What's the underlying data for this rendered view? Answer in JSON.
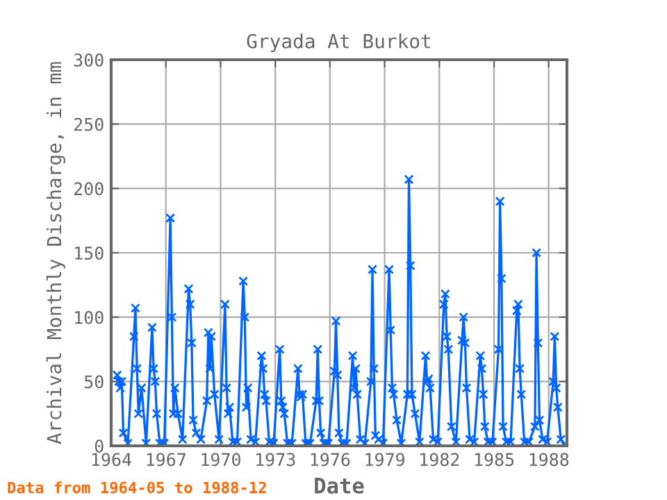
{
  "chart_data": {
    "type": "line",
    "title": "Gryada At Burkot",
    "xlabel": "Date",
    "ylabel": "Archival Monthly Discharge, in mm",
    "annotations": [
      "Data from 1964-05 to 1988-12"
    ],
    "x": [
      "1964-05",
      "1964-06",
      "1964-07",
      "1964-08",
      "1964-09",
      "1964-12",
      "1965-04",
      "1965-05",
      "1965-06",
      "1965-07",
      "1965-09",
      "1965-12",
      "1966-04",
      "1966-05",
      "1966-06",
      "1966-07",
      "1966-09",
      "1966-12",
      "1967-04",
      "1967-05",
      "1967-06",
      "1967-07",
      "1967-09",
      "1967-12",
      "1968-04",
      "1968-05",
      "1968-06",
      "1968-07",
      "1968-09",
      "1968-12",
      "1969-04",
      "1969-05",
      "1969-06",
      "1969-07",
      "1969-09",
      "1969-12",
      "1970-04",
      "1970-05",
      "1970-06",
      "1970-07",
      "1970-09",
      "1970-12",
      "1971-04",
      "1971-05",
      "1971-06",
      "1971-07",
      "1971-09",
      "1971-12",
      "1972-04",
      "1972-05",
      "1972-06",
      "1972-07",
      "1972-09",
      "1972-12",
      "1973-04",
      "1973-05",
      "1973-06",
      "1973-07",
      "1973-09",
      "1973-12",
      "1974-04",
      "1974-05",
      "1974-06",
      "1974-07",
      "1974-09",
      "1974-12",
      "1975-04",
      "1975-05",
      "1975-06",
      "1975-07",
      "1975-09",
      "1975-12",
      "1976-04",
      "1976-05",
      "1976-06",
      "1976-07",
      "1976-09",
      "1976-12",
      "1977-04",
      "1977-05",
      "1977-06",
      "1977-07",
      "1977-09",
      "1977-12",
      "1978-04",
      "1978-05",
      "1978-06",
      "1978-07",
      "1978-09",
      "1978-12",
      "1979-04",
      "1979-05",
      "1979-06",
      "1979-07",
      "1979-09",
      "1979-12",
      "1980-04",
      "1980-05",
      "1980-06",
      "1980-07",
      "1980-09",
      "1980-12",
      "1981-04",
      "1981-05",
      "1981-06",
      "1981-07",
      "1981-09",
      "1981-12",
      "1982-04",
      "1982-05",
      "1982-06",
      "1982-07",
      "1982-09",
      "1982-12",
      "1983-04",
      "1983-05",
      "1983-06",
      "1983-07",
      "1983-09",
      "1983-12",
      "1984-04",
      "1984-05",
      "1984-06",
      "1984-07",
      "1984-09",
      "1984-12",
      "1985-04",
      "1985-05",
      "1985-06",
      "1985-07",
      "1985-09",
      "1985-12",
      "1986-04",
      "1986-05",
      "1986-06",
      "1986-07",
      "1986-09",
      "1986-12",
      "1987-04",
      "1987-05",
      "1987-06",
      "1987-07",
      "1987-09",
      "1987-12",
      "1988-04",
      "1988-05",
      "1988-06",
      "1988-07",
      "1988-09",
      "1988-12"
    ],
    "values": [
      55,
      50,
      45,
      50,
      10,
      2,
      85,
      107,
      60,
      25,
      45,
      2,
      92,
      60,
      50,
      25,
      2,
      2,
      177,
      100,
      25,
      45,
      25,
      5,
      122,
      110,
      80,
      20,
      10,
      5,
      35,
      88,
      60,
      85,
      40,
      5,
      110,
      45,
      25,
      30,
      3,
      3,
      128,
      100,
      30,
      45,
      5,
      3,
      70,
      60,
      40,
      35,
      3,
      2,
      75,
      35,
      30,
      25,
      2,
      2,
      60,
      40,
      38,
      40,
      2,
      2,
      35,
      75,
      35,
      10,
      2,
      2,
      58,
      97,
      55,
      10,
      2,
      2,
      70,
      45,
      60,
      40,
      5,
      2,
      50,
      137,
      60,
      8,
      5,
      2,
      137,
      90,
      45,
      40,
      20,
      2,
      40,
      207,
      140,
      40,
      25,
      3,
      70,
      50,
      52,
      45,
      5,
      3,
      110,
      118,
      85,
      75,
      15,
      3,
      82,
      100,
      80,
      45,
      5,
      3,
      70,
      60,
      40,
      15,
      3,
      3,
      75,
      190,
      130,
      15,
      3,
      3,
      105,
      110,
      60,
      40,
      3,
      3,
      15,
      150,
      80,
      20,
      5,
      3,
      50,
      85,
      45,
      30,
      5,
      0
    ],
    "color": "#0066ff",
    "marker": "cross",
    "line_style": "solid",
    "xlim": [
      "1964-01",
      "1989-01"
    ],
    "xticks": [
      {
        "value": "1964-01",
        "label": "1964"
      },
      {
        "value": "1967-01",
        "label": "1967"
      },
      {
        "value": "1970-01",
        "label": "1970"
      },
      {
        "value": "1973-01",
        "label": "1973"
      },
      {
        "value": "1976-01",
        "label": "1976"
      },
      {
        "value": "1979-01",
        "label": "1979"
      },
      {
        "value": "1982-01",
        "label": "1982"
      },
      {
        "value": "1985-01",
        "label": "1985"
      },
      {
        "value": "1988-01",
        "label": "1988"
      }
    ],
    "ylim": [
      0,
      300
    ],
    "yticks": [
      0,
      50,
      100,
      150,
      200,
      250,
      300
    ],
    "grid": true
  }
}
